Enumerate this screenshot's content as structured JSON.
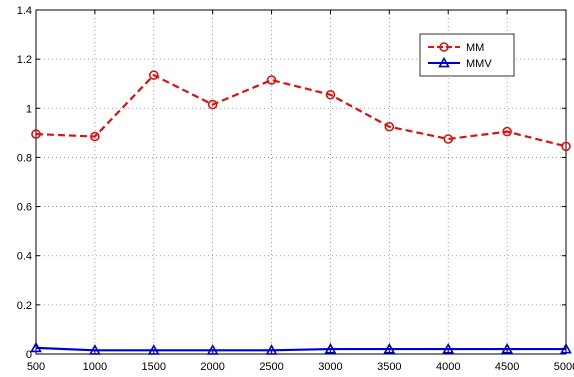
{
  "chart_data": {
    "type": "line",
    "title": "",
    "xlabel": "",
    "ylabel": "",
    "x": [
      500,
      1000,
      1500,
      2000,
      2500,
      3000,
      3500,
      4000,
      4500,
      5000
    ],
    "xlim": [
      500,
      5000
    ],
    "ylim": [
      0,
      1.4
    ],
    "x_ticks": [
      500,
      1000,
      1500,
      2000,
      2500,
      3000,
      3500,
      4000,
      4500,
      5000
    ],
    "y_ticks": [
      0,
      0.2,
      0.4,
      0.6,
      0.8,
      1,
      1.2,
      1.4
    ],
    "x_tick_labels": [
      "500",
      "1000",
      "1500",
      "2000",
      "2500",
      "3000",
      "3500",
      "4000",
      "4500",
      "5000"
    ],
    "y_tick_labels": [
      "0",
      "0.2",
      "0.4",
      "0.6",
      "0.8",
      "1",
      "1.2",
      "1.4"
    ],
    "grid": true,
    "legend_position": "top-right",
    "series": [
      {
        "name": "MM",
        "color": "#dd1111",
        "marker": "circle",
        "line_style": "dashed",
        "values": [
          0.895,
          0.885,
          1.135,
          1.015,
          1.115,
          1.055,
          0.925,
          0.875,
          0.905,
          0.845
        ]
      },
      {
        "name": "MMV",
        "color": "#0000cc",
        "marker": "triangle",
        "line_style": "solid",
        "values": [
          0.025,
          0.015,
          0.015,
          0.015,
          0.015,
          0.02,
          0.02,
          0.02,
          0.02,
          0.02
        ]
      }
    ]
  }
}
